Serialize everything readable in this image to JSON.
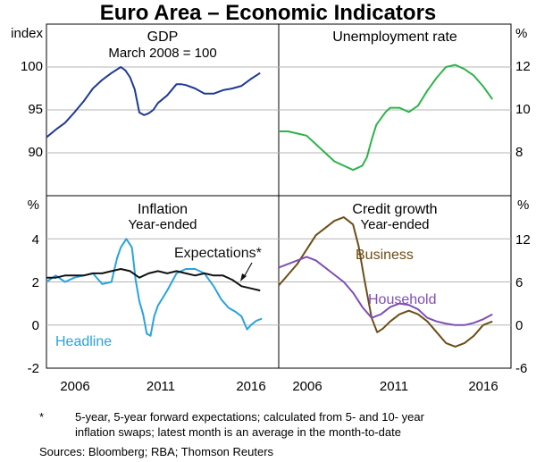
{
  "figure_title": "Euro Area – Economic Indicators",
  "x_ticks": [
    "2006",
    "2011",
    "2016"
  ],
  "footnote": {
    "marker": "*",
    "line1": "5-year, 5-year forward expectations; calculated from 5- and 10- year",
    "line2": "inflation swaps; latest month is an average in the month-to-date"
  },
  "sources": "Sources:   Bloomberg; RBA; Thomson Reuters",
  "colors": {
    "gdp": "#1f3a93",
    "unemployment": "#2db34a",
    "headline": "#29a3dc",
    "expectations": "#111111",
    "business": "#6b4e16",
    "household": "#7d4fb6",
    "grid": "#b5b5b5"
  },
  "chart_data": [
    {
      "type": "line",
      "panel": "top-left",
      "title": "GDP",
      "subtitle": "March 2008 = 100",
      "ylabel": "index",
      "yticks": [
        "100",
        "95",
        "90"
      ],
      "ylim": [
        85,
        105
      ],
      "xlim": [
        2004.0,
        2016.5
      ],
      "series": [
        {
          "name": "GDP",
          "color_key": "gdp",
          "x": [
            2004.0,
            2004.5,
            2005.0,
            2005.5,
            2006.0,
            2006.5,
            2007.0,
            2007.5,
            2008.0,
            2008.25,
            2008.5,
            2008.75,
            2009.0,
            2009.25,
            2009.5,
            2009.75,
            2010.0,
            2010.5,
            2011.0,
            2011.25,
            2011.5,
            2012.0,
            2012.5,
            2013.0,
            2013.5,
            2014.0,
            2014.5,
            2015.0,
            2015.5
          ],
          "y": [
            91.8,
            92.7,
            93.5,
            94.7,
            96.0,
            97.5,
            98.5,
            99.3,
            100.0,
            99.6,
            98.8,
            97.4,
            94.7,
            94.4,
            94.6,
            95.0,
            95.8,
            96.7,
            98.0,
            98.0,
            97.9,
            97.5,
            96.9,
            96.9,
            97.3,
            97.5,
            97.8,
            98.6,
            99.3
          ]
        }
      ]
    },
    {
      "type": "line",
      "panel": "top-right",
      "title": "Unemployment rate",
      "ylabel": "%",
      "yticks": [
        "12",
        "10",
        "8"
      ],
      "ylim": [
        6,
        14
      ],
      "xlim": [
        2004.0,
        2016.5
      ],
      "series": [
        {
          "name": "Unemployment rate",
          "color_key": "unemployment",
          "x": [
            2004.0,
            2004.5,
            2005.0,
            2005.5,
            2006.0,
            2006.5,
            2007.0,
            2007.5,
            2008.0,
            2008.25,
            2008.5,
            2008.75,
            2009.0,
            2009.25,
            2009.5,
            2009.75,
            2010.0,
            2010.5,
            2011.0,
            2011.5,
            2012.0,
            2012.5,
            2013.0,
            2013.5,
            2014.0,
            2014.5,
            2015.0,
            2015.5
          ],
          "y": [
            9.0,
            9.0,
            8.9,
            8.8,
            8.4,
            8.0,
            7.6,
            7.4,
            7.2,
            7.3,
            7.4,
            7.8,
            8.6,
            9.3,
            9.6,
            9.9,
            10.1,
            10.1,
            9.9,
            10.2,
            10.9,
            11.5,
            12.0,
            12.1,
            11.9,
            11.6,
            11.1,
            10.5
          ]
        }
      ]
    },
    {
      "type": "line",
      "panel": "bottom-left",
      "title": "Inflation",
      "subtitle": "Year-ended",
      "ylabel": "%",
      "yticks": [
        "4",
        "2",
        "0",
        "-2"
      ],
      "ylim": [
        -2,
        6
      ],
      "xlim": [
        2004.0,
        2016.5
      ],
      "annotations": [
        "Expectations*",
        "Headline"
      ],
      "series": [
        {
          "name": "Headline",
          "color_key": "headline",
          "x": [
            2004.0,
            2004.5,
            2005.0,
            2005.5,
            2006.0,
            2006.5,
            2007.0,
            2007.5,
            2007.8,
            2008.0,
            2008.3,
            2008.6,
            2008.8,
            2009.0,
            2009.2,
            2009.4,
            2009.6,
            2009.8,
            2010.0,
            2010.5,
            2011.0,
            2011.5,
            2012.0,
            2012.5,
            2013.0,
            2013.4,
            2013.8,
            2014.2,
            2014.5,
            2014.8,
            2015.0,
            2015.3,
            2015.6
          ],
          "y": [
            2.0,
            2.3,
            2.0,
            2.2,
            2.3,
            2.4,
            1.9,
            2.0,
            3.1,
            3.6,
            4.0,
            3.6,
            2.1,
            1.1,
            0.5,
            -0.4,
            -0.5,
            0.4,
            0.9,
            1.6,
            2.4,
            2.6,
            2.6,
            2.4,
            1.8,
            1.2,
            0.8,
            0.6,
            0.4,
            -0.2,
            0.0,
            0.2,
            0.3
          ]
        },
        {
          "name": "Expectations*",
          "color_key": "expectations",
          "x": [
            2004.0,
            2004.5,
            2005.0,
            2005.5,
            2006.0,
            2006.5,
            2007.0,
            2007.5,
            2008.0,
            2008.5,
            2009.0,
            2009.5,
            2010.0,
            2010.5,
            2011.0,
            2011.5,
            2012.0,
            2012.5,
            2013.0,
            2013.5,
            2014.0,
            2014.5,
            2015.0,
            2015.5
          ],
          "y": [
            2.2,
            2.2,
            2.3,
            2.3,
            2.3,
            2.4,
            2.4,
            2.5,
            2.6,
            2.5,
            2.2,
            2.4,
            2.5,
            2.4,
            2.5,
            2.4,
            2.3,
            2.4,
            2.3,
            2.3,
            2.1,
            1.8,
            1.7,
            1.6
          ]
        }
      ]
    },
    {
      "type": "line",
      "panel": "bottom-right",
      "title": "Credit growth",
      "subtitle": "Year-ended",
      "ylabel": "%",
      "yticks": [
        "12",
        "6",
        "0",
        "-6"
      ],
      "ylim": [
        -6,
        18
      ],
      "xlim": [
        2004.0,
        2016.5
      ],
      "annotations": [
        "Business",
        "Household"
      ],
      "series": [
        {
          "name": "Business",
          "color_key": "business",
          "x": [
            2004.0,
            2004.5,
            2005.0,
            2005.5,
            2006.0,
            2006.5,
            2007.0,
            2007.5,
            2008.0,
            2008.3,
            2008.6,
            2009.0,
            2009.3,
            2009.6,
            2010.0,
            2010.5,
            2011.0,
            2011.5,
            2012.0,
            2012.5,
            2013.0,
            2013.5,
            2014.0,
            2014.5,
            2015.0,
            2015.5
          ],
          "y": [
            5.5,
            7.0,
            8.5,
            10.5,
            12.5,
            13.5,
            14.5,
            15.0,
            14.0,
            11.0,
            6.5,
            1.0,
            -1.0,
            -0.5,
            0.5,
            1.5,
            2.0,
            1.5,
            0.5,
            -1.0,
            -2.5,
            -3.0,
            -2.5,
            -1.5,
            0.0,
            0.5
          ]
        },
        {
          "name": "Household",
          "color_key": "household",
          "x": [
            2004.0,
            2004.5,
            2005.0,
            2005.5,
            2006.0,
            2006.5,
            2007.0,
            2007.5,
            2008.0,
            2008.5,
            2009.0,
            2009.5,
            2010.0,
            2010.5,
            2011.0,
            2011.5,
            2012.0,
            2012.5,
            2013.0,
            2013.5,
            2014.0,
            2014.5,
            2015.0,
            2015.5
          ],
          "y": [
            8.0,
            8.5,
            9.0,
            9.5,
            9.0,
            8.0,
            7.0,
            6.0,
            4.5,
            2.5,
            1.0,
            1.5,
            2.5,
            3.0,
            2.8,
            2.2,
            1.0,
            0.5,
            0.2,
            0.0,
            0.0,
            0.3,
            0.8,
            1.5
          ]
        }
      ]
    }
  ]
}
